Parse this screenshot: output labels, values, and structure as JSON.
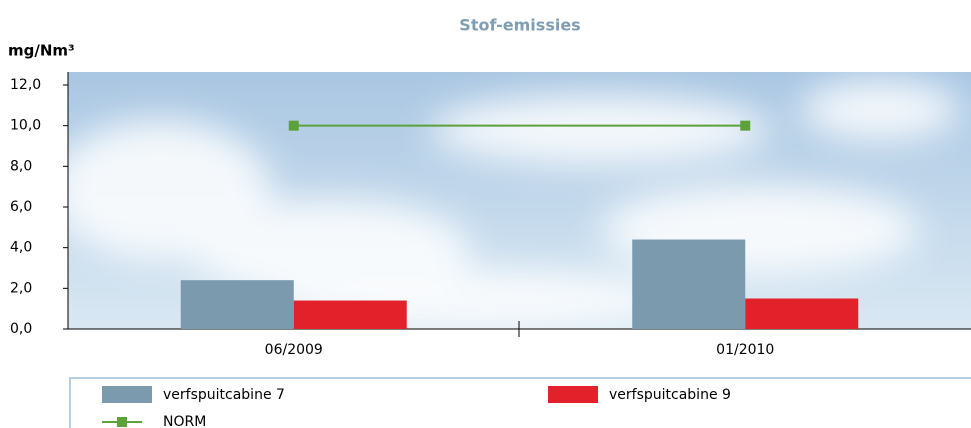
{
  "chart_data": {
    "type": "bar",
    "title": "Stof-emissies",
    "y_label": "mg/Nm³",
    "categories": [
      "06/2009",
      "01/2010"
    ],
    "series": [
      {
        "name": "verfspuitcabine 7",
        "color": "#7b9aae",
        "type": "bar",
        "values": [
          2.4,
          4.4
        ]
      },
      {
        "name": "verfspuitcabine 9",
        "color": "#e3212a",
        "type": "bar",
        "values": [
          1.4,
          1.5
        ]
      },
      {
        "name": "NORM",
        "color": "#5da13a",
        "type": "line",
        "values": [
          10,
          10
        ]
      }
    ],
    "ylim": [
      0,
      12
    ],
    "yticks": [
      {
        "value": 0,
        "label": "0,0"
      },
      {
        "value": 2,
        "label": "2,0"
      },
      {
        "value": 4,
        "label": "4,0"
      },
      {
        "value": 6,
        "label": "6,0"
      },
      {
        "value": 8,
        "label": "8,0"
      },
      {
        "value": 10,
        "label": "10,0"
      },
      {
        "value": 12,
        "label": "12,0"
      }
    ]
  }
}
